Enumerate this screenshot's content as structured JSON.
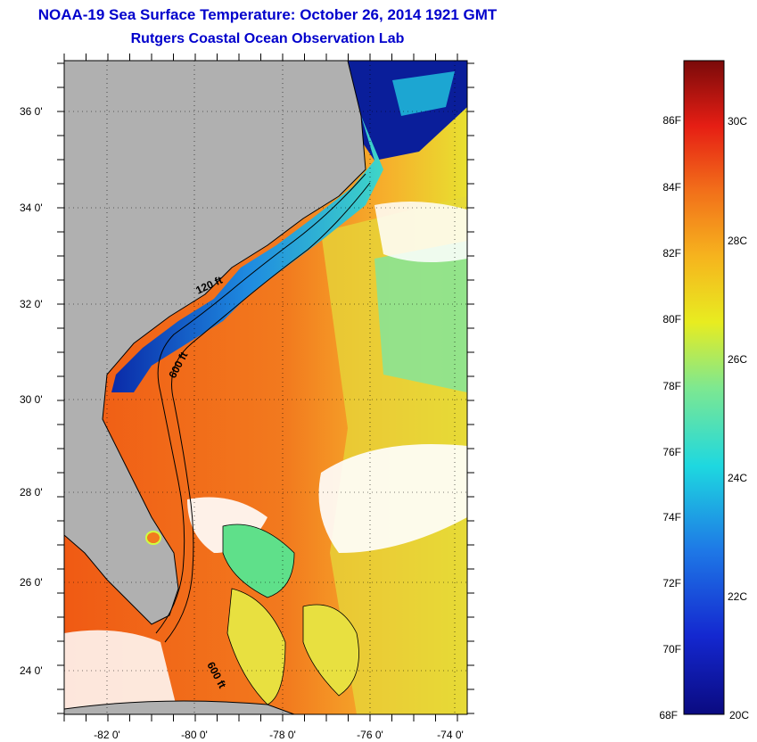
{
  "title": "NOAA-19 Sea Surface Temperature:  October 26, 2014 1921 GMT",
  "subtitle": "Rutgers Coastal Ocean Observation Lab",
  "map": {
    "lat_labels": [
      "36 0'",
      "34 0'",
      "32 0'",
      "30 0'",
      "28 0'",
      "26 0'",
      "24 0'"
    ],
    "lon_labels": [
      "-82 0'",
      "-80 0'",
      "-78 0'",
      "-76 0'",
      "-74 0'"
    ],
    "contour_labels": [
      "120 ft",
      "600 ft",
      "600 ft"
    ]
  },
  "colorbar": {
    "fahrenheit_labels": [
      "86F",
      "84F",
      "82F",
      "80F",
      "78F",
      "76F",
      "74F",
      "72F",
      "70F",
      "68F"
    ],
    "celsius_labels": [
      "30C",
      "28C",
      "26C",
      "24C",
      "22C",
      "20C"
    ]
  },
  "colors": {
    "title": "#0000cc",
    "land": "#b0b0b0",
    "warm": "#f06a1e",
    "cool": "#1e5fd8",
    "cloud": "#ffffff"
  }
}
